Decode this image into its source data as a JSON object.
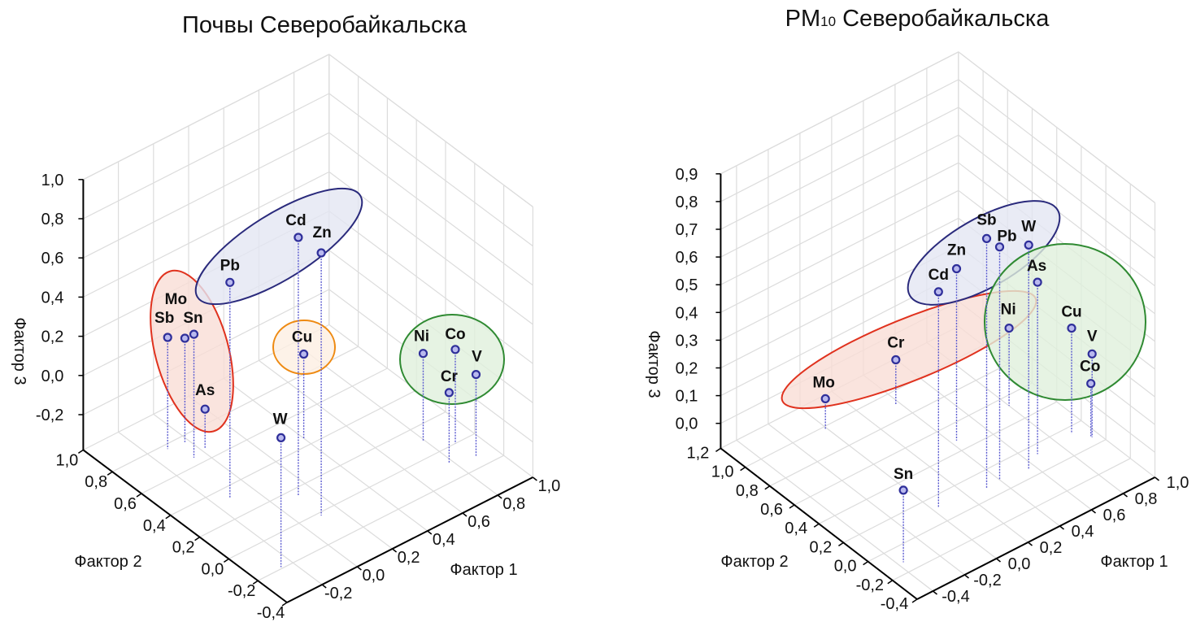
{
  "chart_data": [
    {
      "type": "scatter",
      "title": "Почвы Северобайкальска",
      "xlabel": "Фактор 1",
      "ylabel": "Фактор 2",
      "zlabel": "Фактор 3",
      "xlim": [
        -0.4,
        1.0
      ],
      "ylim": [
        -0.4,
        1.0
      ],
      "zlim": [
        -0.38,
        1.0
      ],
      "grid": true,
      "xticks": [
        -0.2,
        0.0,
        0.2,
        0.4,
        0.6,
        0.8,
        1.0
      ],
      "xtick_labels": [
        "-0,2",
        "0,0",
        "0,2",
        "0,4",
        "0,6",
        "0,8",
        "1,0"
      ],
      "yticks": [
        -0.4,
        -0.2,
        0.0,
        0.2,
        0.4,
        0.6,
        0.8,
        1.0
      ],
      "ytick_labels": [
        "-0,4",
        "-0,2",
        "0,0",
        "0,2",
        "0,4",
        "0,6",
        "0,8",
        "1,0"
      ],
      "zticks": [
        -0.2,
        0.0,
        0.2,
        0.4,
        0.6,
        0.8,
        1.0
      ],
      "ztick_labels": [
        "-0,2",
        "0,0",
        "0,2",
        "0,4",
        "0,6",
        "0,8",
        "1,0"
      ],
      "points": [
        {
          "label": "Pb",
          "x": -0.12,
          "y": 0.33,
          "z": 0.72
        },
        {
          "label": "Cd",
          "x": 0.12,
          "y": 0.15,
          "z": 0.94
        },
        {
          "label": "Zn",
          "x": 0.11,
          "y": -0.02,
          "z": 0.96
        },
        {
          "label": "Mo",
          "x": -0.02,
          "y": 0.76,
          "z": 0.15
        },
        {
          "label": "Sb",
          "x": -0.11,
          "y": 0.77,
          "z": 0.19
        },
        {
          "label": "Sn",
          "x": -0.06,
          "y": 0.65,
          "z": 0.25
        },
        {
          "label": "As",
          "x": 0.02,
          "y": 0.67,
          "z": -0.18
        },
        {
          "label": "Cu",
          "x": 0.4,
          "y": 0.45,
          "z": 0.05
        },
        {
          "label": "W",
          "x": -0.26,
          "y": -0.19,
          "z": 0.28
        },
        {
          "label": "Ni",
          "x": 0.79,
          "y": 0.1,
          "z": 0.07
        },
        {
          "label": "Co",
          "x": 0.89,
          "y": 0.0,
          "z": 0.1
        },
        {
          "label": "Cr",
          "x": 0.78,
          "y": -0.09,
          "z": -0.02
        },
        {
          "label": "V",
          "x": 0.9,
          "y": -0.13,
          "z": 0.04
        }
      ],
      "clusters": [
        {
          "members": [
            "Mo",
            "Sb",
            "Sn",
            "As"
          ],
          "stroke": "#e0321e",
          "fill": "#f9ddd6"
        },
        {
          "members": [
            "Pb",
            "Cd",
            "Zn"
          ],
          "stroke": "#2a2a7c",
          "fill": "#e4e6f2"
        },
        {
          "members": [
            "Cu"
          ],
          "stroke": "#ee8a12",
          "fill": "#fcefe2"
        },
        {
          "members": [
            "Ni",
            "Co",
            "Cr",
            "V"
          ],
          "stroke": "#2f8a32",
          "fill": "#e0f0dc"
        }
      ]
    },
    {
      "type": "scatter",
      "title": "PM",
      "title_sub": "10",
      "title_rest": " Северобайкальска",
      "xlabel": "Фактор 1",
      "ylabel": "Фактор 2",
      "zlabel": "Фактор 3",
      "xlim": [
        -0.5,
        1.0
      ],
      "ylim": [
        -0.4,
        1.2
      ],
      "zlim": [
        -0.09,
        0.9
      ],
      "grid": true,
      "xticks": [
        -0.4,
        -0.2,
        0.0,
        0.2,
        0.4,
        0.6,
        0.8,
        1.0
      ],
      "xtick_labels": [
        "-0,4",
        "-0,2",
        "0,0",
        "0,2",
        "0,4",
        "0,6",
        "0,8",
        "1,0"
      ],
      "yticks": [
        -0.4,
        -0.2,
        0.0,
        0.2,
        0.4,
        0.6,
        0.8,
        1.0,
        1.2
      ],
      "ytick_labels": [
        "-0,4",
        "-0,2",
        "0,0",
        "0,2",
        "0,4",
        "0,6",
        "0,8",
        "1,0",
        "1,2"
      ],
      "zticks": [
        0.0,
        0.1,
        0.2,
        0.3,
        0.4,
        0.5,
        0.6,
        0.7,
        0.8,
        0.9
      ],
      "ztick_labels": [
        "0,0",
        "0,1",
        "0,2",
        "0,3",
        "0,4",
        "0,5",
        "0,6",
        "0,7",
        "0,8",
        "0,9"
      ],
      "points": [
        {
          "label": "Mo",
          "x": -0.01,
          "y": 0.98,
          "z": 0.02
        },
        {
          "label": "Cr",
          "x": 0.38,
          "y": 0.91,
          "z": 0.07
        },
        {
          "label": "Cd",
          "x": 0.03,
          "y": 0.11,
          "z": 0.69
        },
        {
          "label": "Zn",
          "x": 0.43,
          "y": 0.48,
          "z": 0.53
        },
        {
          "label": "Sb",
          "x": 0.31,
          "y": 0.08,
          "z": 0.81
        },
        {
          "label": "Pb",
          "x": 0.4,
          "y": 0.09,
          "z": 0.75
        },
        {
          "label": "W",
          "x": 0.56,
          "y": 0.06,
          "z": 0.72
        },
        {
          "label": "As",
          "x": 0.67,
          "y": 0.13,
          "z": 0.53
        },
        {
          "label": "Ni",
          "x": 0.8,
          "y": 0.53,
          "z": 0.19
        },
        {
          "label": "Cu",
          "x": 0.9,
          "y": 0.15,
          "z": 0.29
        },
        {
          "label": "V",
          "x": 0.96,
          "y": 0.06,
          "z": 0.21
        },
        {
          "label": "Co",
          "x": 0.96,
          "y": 0.07,
          "z": 0.1
        },
        {
          "label": "Sn",
          "x": -0.37,
          "y": -0.12,
          "z": 0.17
        }
      ],
      "clusters": [
        {
          "members": [
            "Mo",
            "Cr",
            "Ni"
          ],
          "stroke": "#e0321e",
          "fill": "#f9ddd6"
        },
        {
          "members": [
            "Cd",
            "Zn",
            "Sb",
            "Pb",
            "W"
          ],
          "stroke": "#2a2a7c",
          "fill": "#e4e6f2"
        },
        {
          "members": [
            "Ni",
            "As",
            "Cu",
            "V",
            "Co"
          ],
          "stroke": "#2f8a32",
          "fill": "#e0f0dc"
        }
      ]
    }
  ]
}
